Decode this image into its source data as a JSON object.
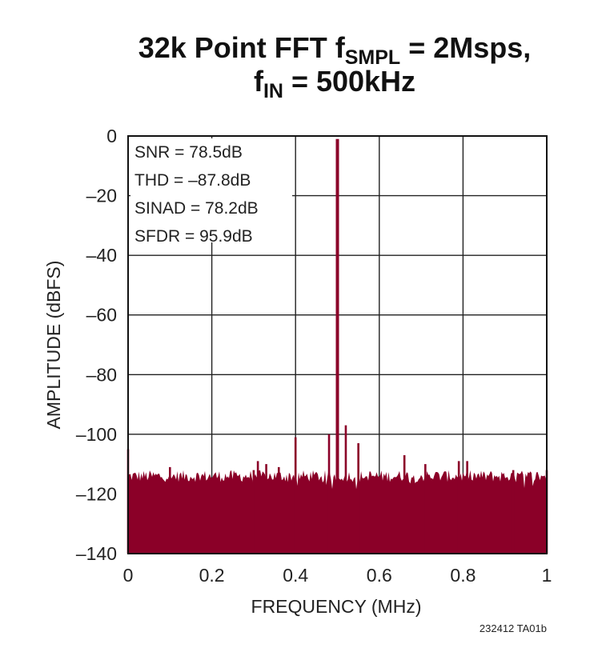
{
  "chart_data": {
    "type": "line",
    "title": {
      "line1_main": "32k Point FFT f",
      "line1_sub": "SMPL",
      "line1_tail": " = 2Msps,",
      "line2_main": "f",
      "line2_sub": "IN",
      "line2_tail": " = 500kHz"
    },
    "xlabel": "FREQUENCY (MHz)",
    "ylabel": "AMPLITUDE (dBFS)",
    "xlim": [
      0,
      1
    ],
    "ylim": [
      -140,
      0
    ],
    "x_ticks": [
      "0",
      "0.2",
      "0.4",
      "0.6",
      "0.8",
      "1"
    ],
    "y_ticks": [
      "0",
      "–20",
      "–40",
      "–60",
      "–80",
      "–100",
      "–120",
      "–140"
    ],
    "grid": true,
    "series_color": "#8b0028",
    "noise_floor_dbfs": -114,
    "spurs": [
      {
        "x": 0.0,
        "y": -105
      },
      {
        "x": 0.1,
        "y": -111
      },
      {
        "x": 0.3,
        "y": -112
      },
      {
        "x": 0.31,
        "y": -109
      },
      {
        "x": 0.33,
        "y": -110
      },
      {
        "x": 0.36,
        "y": -111
      },
      {
        "x": 0.4,
        "y": -101
      },
      {
        "x": 0.48,
        "y": -100
      },
      {
        "x": 0.5,
        "y": -1
      },
      {
        "x": 0.52,
        "y": -97
      },
      {
        "x": 0.55,
        "y": -103
      },
      {
        "x": 0.66,
        "y": -107
      },
      {
        "x": 0.71,
        "y": -110
      },
      {
        "x": 0.79,
        "y": -109
      },
      {
        "x": 0.81,
        "y": -109
      },
      {
        "x": 0.92,
        "y": -112
      },
      {
        "x": 1.0,
        "y": -112
      }
    ],
    "annotations": [
      "SNR = 78.5dB",
      "THD = –87.8dB",
      "SINAD = 78.2dB",
      "SFDR = 95.9dB"
    ]
  },
  "figure_id": "232412 TA01b"
}
